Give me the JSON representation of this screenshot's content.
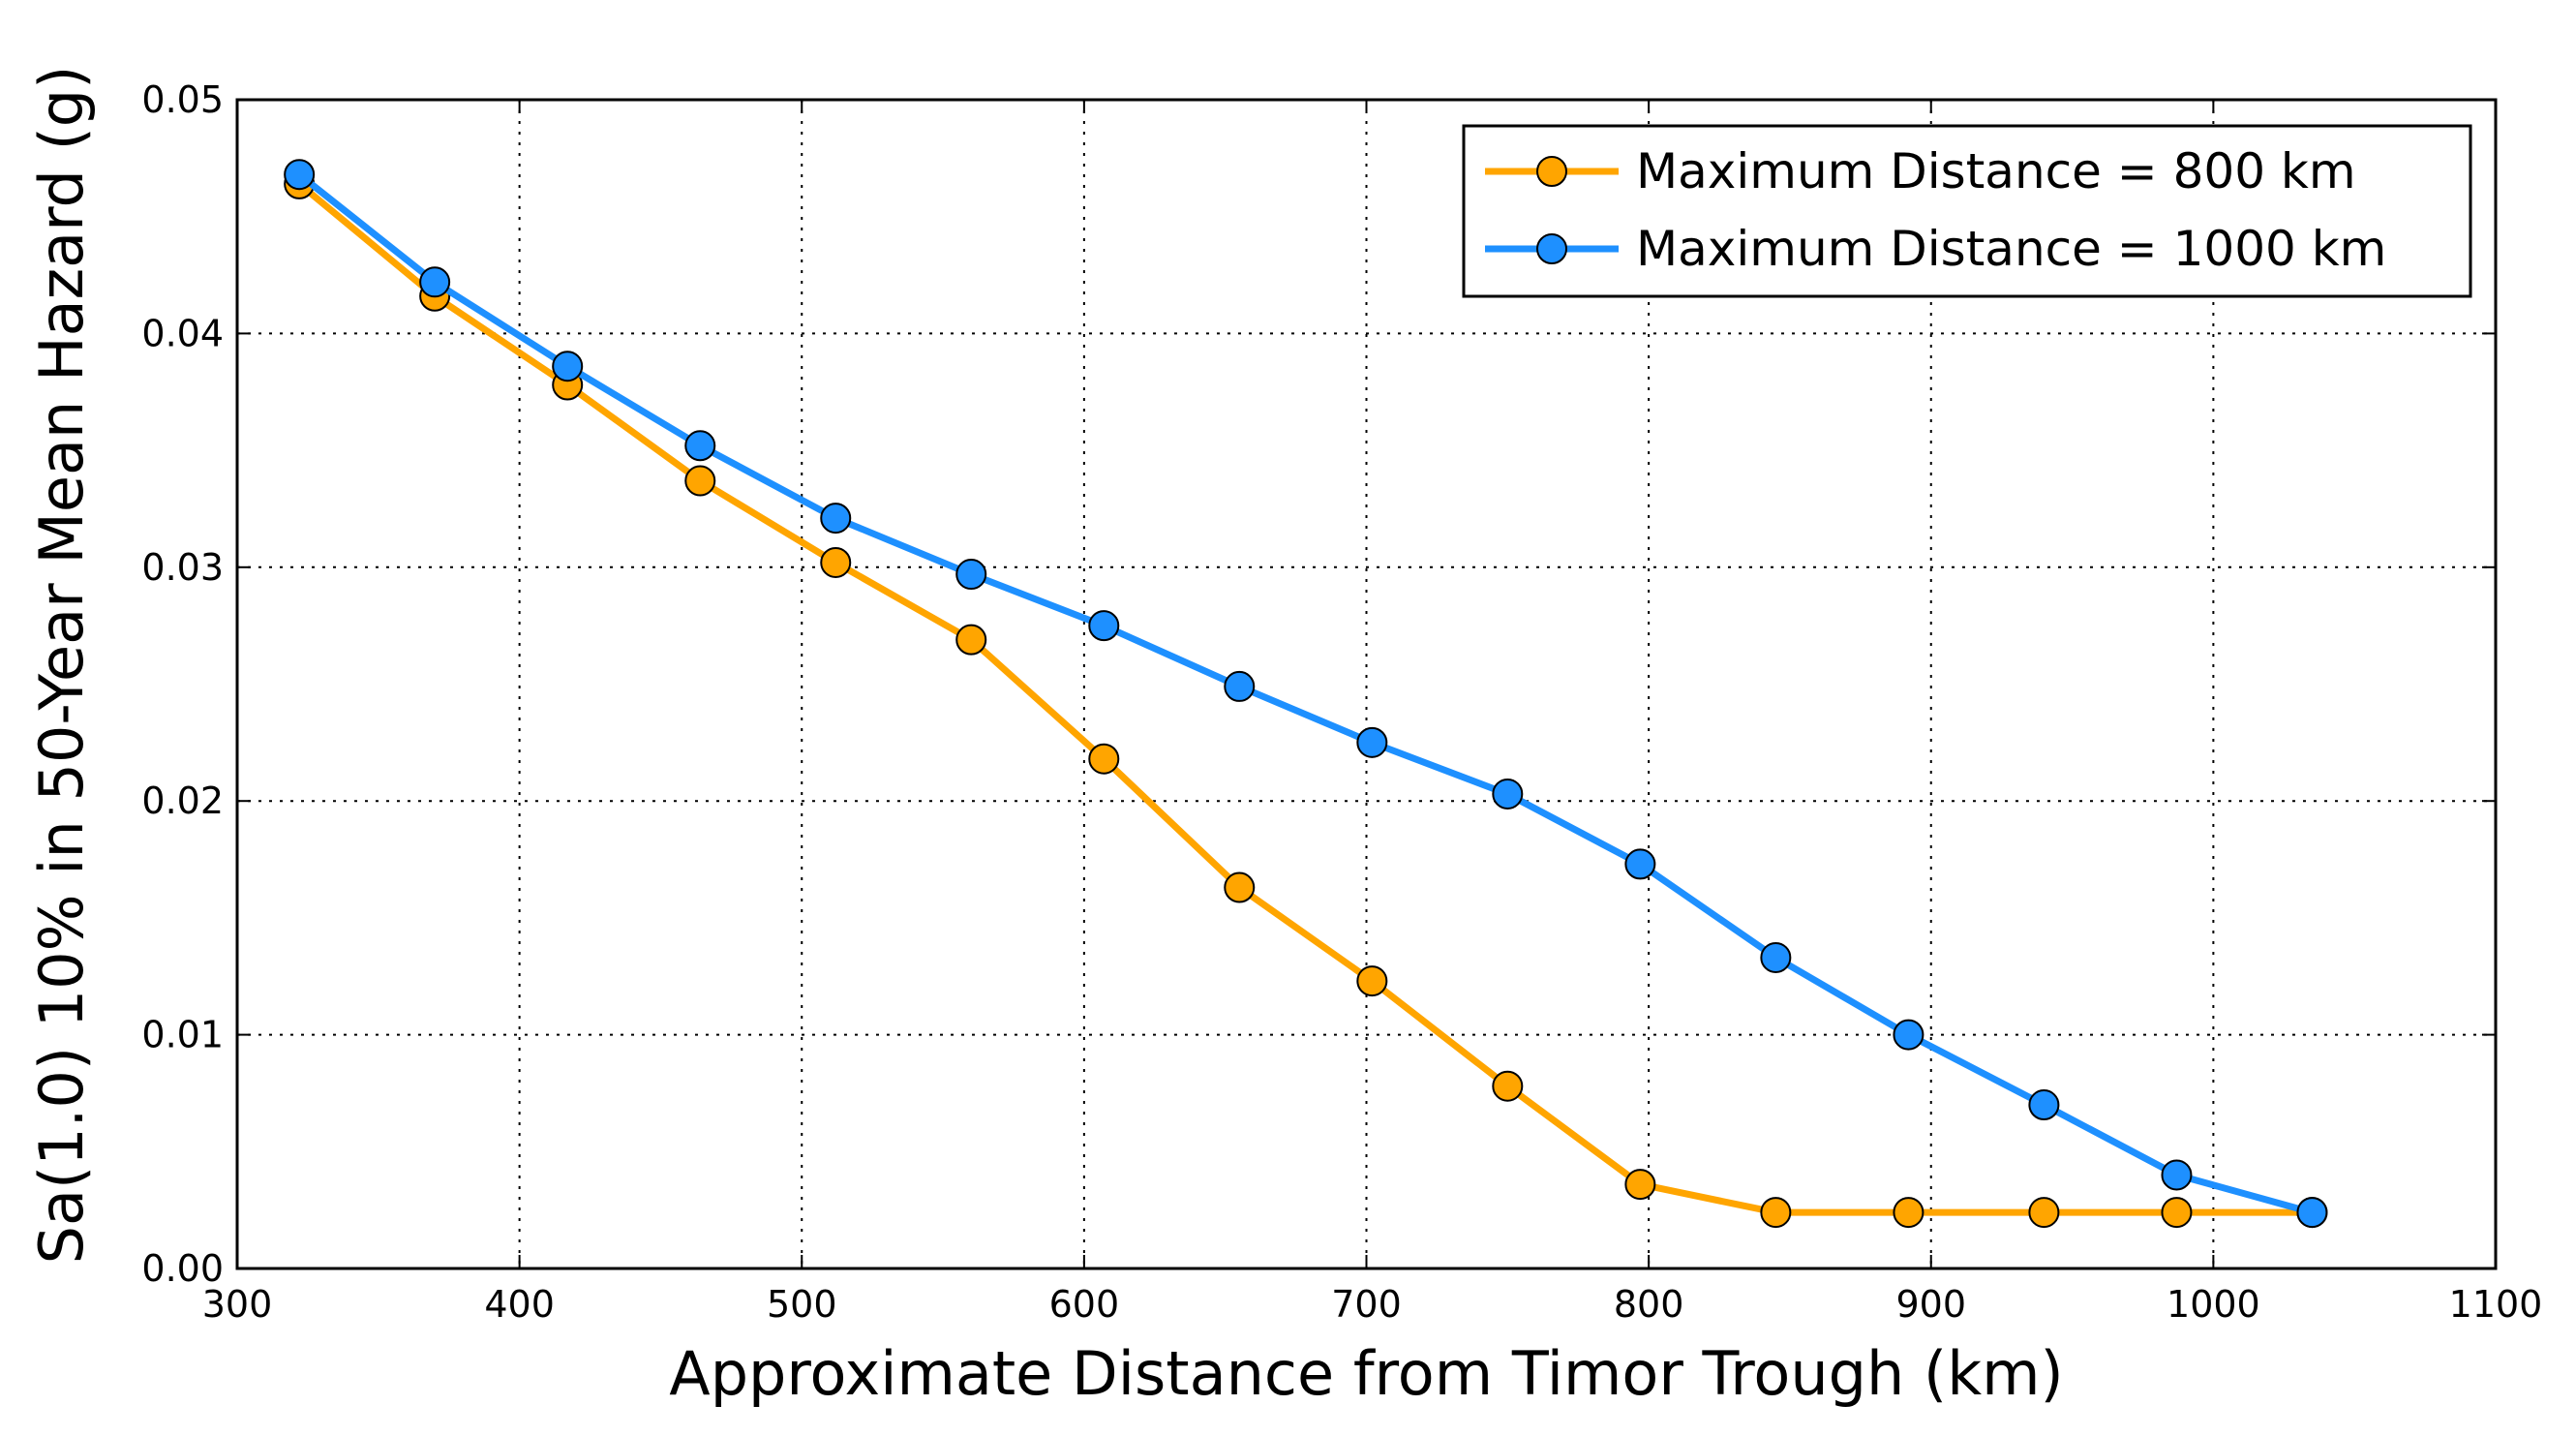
{
  "chart_data": {
    "type": "line",
    "title": "",
    "xlabel": "Approximate Distance from Timor Trough (km)",
    "ylabel": "Sa(1.0) 10% in 50-Year Mean Hazard (g)",
    "xlim": [
      300,
      1100
    ],
    "ylim": [
      0.0,
      0.05
    ],
    "x_ticks": [
      300,
      400,
      500,
      600,
      700,
      800,
      900,
      1000,
      1100
    ],
    "x_tick_labels": [
      "300",
      "400",
      "500",
      "600",
      "700",
      "800",
      "900",
      "1000",
      "1100"
    ],
    "y_ticks": [
      0.0,
      0.01,
      0.02,
      0.03,
      0.04,
      0.05
    ],
    "y_tick_labels": [
      "0.00",
      "0.01",
      "0.02",
      "0.03",
      "0.04",
      "0.05"
    ],
    "grid": true,
    "legend_position": "top-right",
    "x": [
      322,
      370,
      417,
      464,
      512,
      560,
      607,
      655,
      702,
      750,
      797,
      845,
      892,
      940,
      987,
      1035
    ],
    "series": [
      {
        "name": "Maximum Distance = 800 km",
        "color": "#FFA500",
        "marker": "circle",
        "x": [
          322,
          370,
          417,
          464,
          512,
          560,
          607,
          655,
          702,
          750,
          797,
          845,
          892,
          940,
          987,
          1035
        ],
        "values": [
          0.0464,
          0.0416,
          0.0378,
          0.0337,
          0.0302,
          0.0269,
          0.0218,
          0.0163,
          0.0123,
          0.0078,
          0.0036,
          0.0024,
          0.0024,
          0.0024,
          0.0024,
          0.0024
        ]
      },
      {
        "name": "Maximum Distance = 1000 km",
        "color": "#1E90FF",
        "marker": "circle",
        "x": [
          322,
          370,
          417,
          464,
          512,
          560,
          607,
          655,
          702,
          750,
          797,
          845,
          892,
          940,
          987,
          1035
        ],
        "values": [
          0.0468,
          0.0422,
          0.0386,
          0.0352,
          0.0321,
          0.0297,
          0.0275,
          0.0249,
          0.0225,
          0.0203,
          0.0173,
          0.0133,
          0.01,
          0.007,
          0.004,
          0.0024
        ]
      }
    ]
  }
}
